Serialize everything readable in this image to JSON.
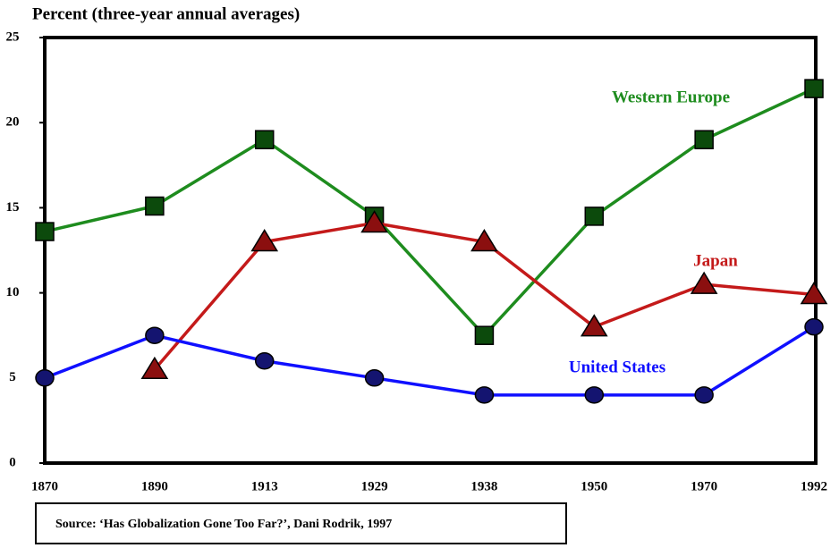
{
  "chart_data": {
    "type": "line",
    "title": "Percent (three-year annual averages)",
    "source": "Source:  ‘Has Globalization Gone Too Far?’, Dani Rodrik, 1997",
    "categories": [
      "1870",
      "1890",
      "1913",
      "1929",
      "1938",
      "1950",
      "1970",
      "1992"
    ],
    "ylim": [
      0,
      25
    ],
    "yticks": [
      0,
      5,
      10,
      15,
      20,
      25
    ],
    "grid": false,
    "series": [
      {
        "name": "Western Europe",
        "color": "#1e8c1e",
        "marker": "square",
        "marker_color": "#0c4a0c",
        "values": [
          13.6,
          15.1,
          19.0,
          14.5,
          7.5,
          14.5,
          19.0,
          22.0
        ]
      },
      {
        "name": "Japan",
        "color": "#c41a1a",
        "marker": "triangle",
        "marker_color": "#8b0f0f",
        "values": [
          null,
          5.5,
          13.0,
          14.1,
          13.0,
          8.0,
          10.5,
          9.9
        ]
      },
      {
        "name": "United States",
        "color": "#1010ff",
        "marker": "circle",
        "marker_color": "#141470",
        "values": [
          5.0,
          7.5,
          6.0,
          5.0,
          4.0,
          4.0,
          4.0,
          8.0
        ]
      }
    ]
  }
}
